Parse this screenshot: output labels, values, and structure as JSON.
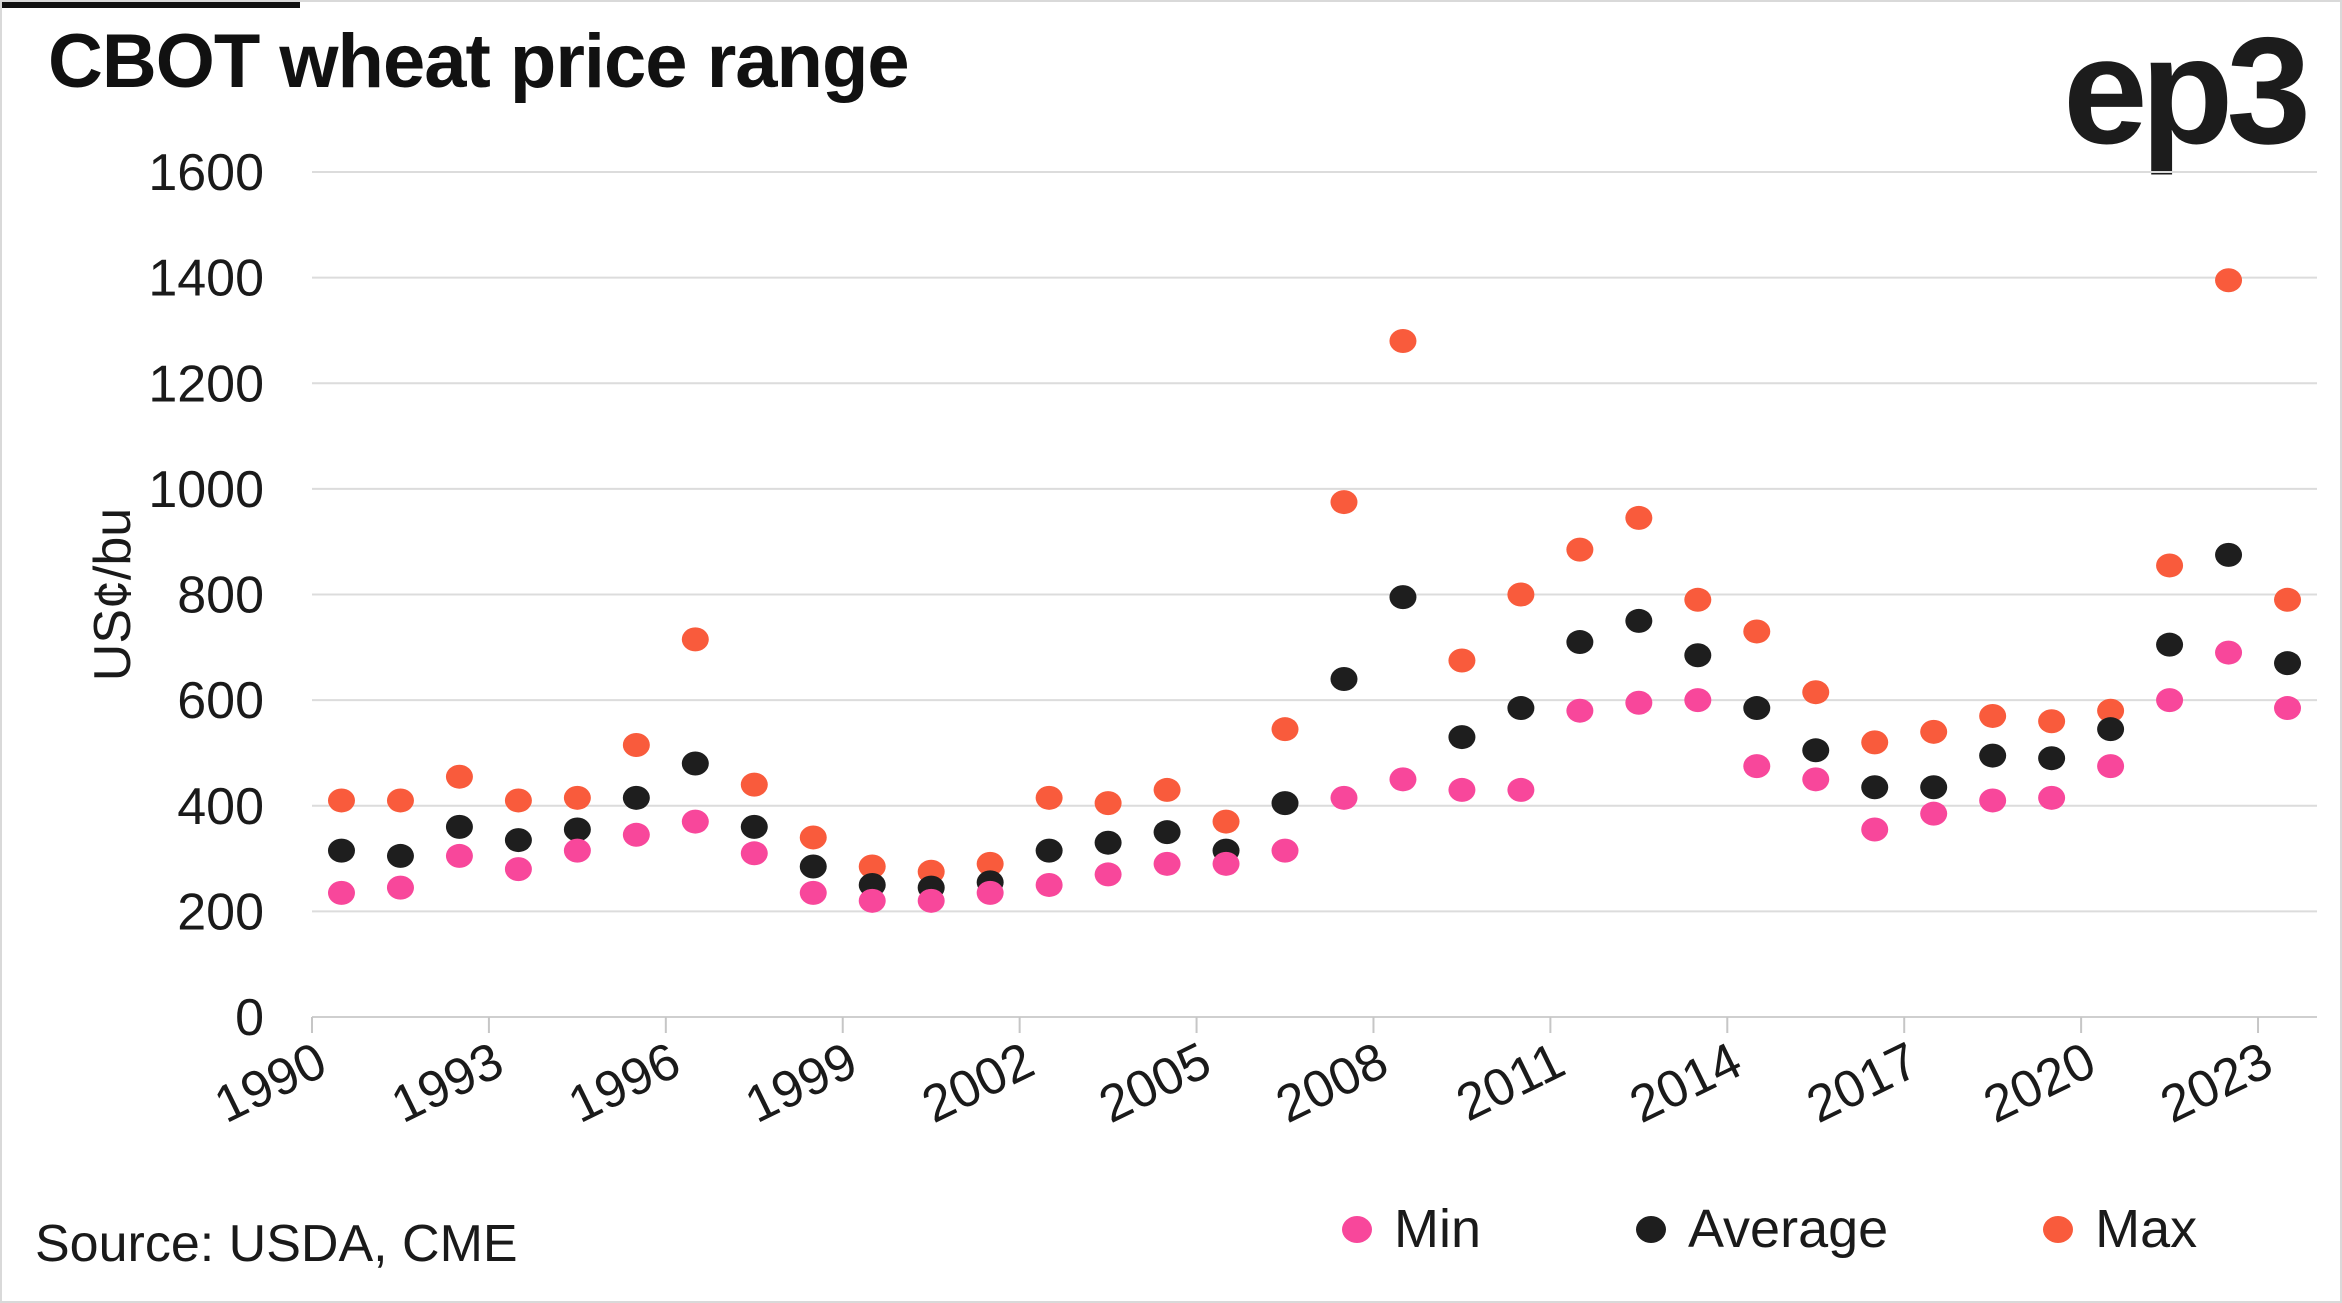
{
  "branding": {
    "logo": "ep3"
  },
  "source": {
    "text": "Source: USDA, CME"
  },
  "chart_data": {
    "type": "scatter",
    "title": "CBOT wheat price range",
    "xlabel": "",
    "ylabel": "US¢/bu",
    "ylim": [
      0,
      1600
    ],
    "y_ticks": [
      0,
      200,
      400,
      600,
      800,
      1000,
      1200,
      1400,
      1600
    ],
    "grid": "horizontal",
    "legend_position": "bottom-right",
    "categories": [
      1990,
      1991,
      1992,
      1993,
      1994,
      1995,
      1996,
      1997,
      1998,
      1999,
      2000,
      2001,
      2002,
      2003,
      2004,
      2005,
      2006,
      2007,
      2008,
      2009,
      2010,
      2011,
      2012,
      2013,
      2014,
      2015,
      2016,
      2017,
      2018,
      2019,
      2020,
      2021,
      2022,
      2023
    ],
    "x_tick_labels": [
      "1990",
      "1993",
      "1996",
      "1999",
      "2002",
      "2005",
      "2008",
      "2011",
      "2014",
      "2017",
      "2020",
      "2023"
    ],
    "series": [
      {
        "name": "Min",
        "color": "#f8479b",
        "values": [
          235,
          245,
          305,
          280,
          315,
          345,
          370,
          310,
          235,
          220,
          220,
          235,
          250,
          270,
          290,
          290,
          315,
          415,
          450,
          430,
          430,
          580,
          595,
          600,
          475,
          450,
          355,
          385,
          410,
          415,
          475,
          600,
          690,
          585
        ]
      },
      {
        "name": "Average",
        "color": "#1e1e1e",
        "values": [
          315,
          305,
          360,
          335,
          355,
          415,
          480,
          360,
          285,
          250,
          245,
          255,
          315,
          330,
          350,
          315,
          405,
          640,
          795,
          530,
          585,
          710,
          750,
          685,
          585,
          505,
          435,
          435,
          495,
          490,
          545,
          705,
          875,
          670
        ]
      },
      {
        "name": "Max",
        "color": "#f95b3c",
        "values": [
          410,
          410,
          455,
          410,
          415,
          515,
          715,
          440,
          340,
          285,
          275,
          290,
          415,
          405,
          430,
          370,
          545,
          975,
          1280,
          675,
          800,
          885,
          945,
          790,
          730,
          615,
          520,
          540,
          570,
          560,
          580,
          855,
          1395,
          790
        ]
      }
    ]
  }
}
